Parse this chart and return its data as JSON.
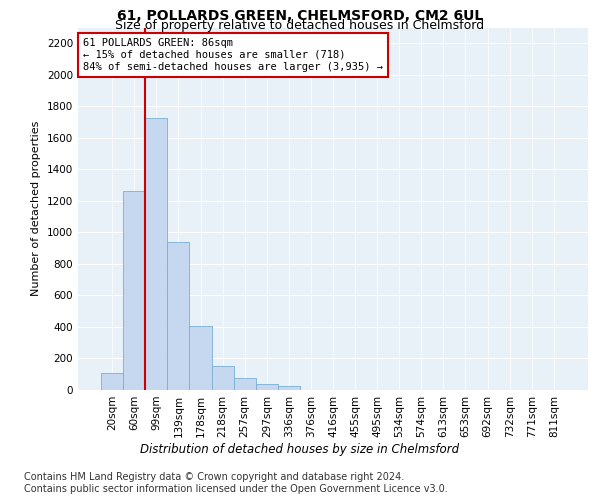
{
  "title": "61, POLLARDS GREEN, CHELMSFORD, CM2 6UL",
  "subtitle": "Size of property relative to detached houses in Chelmsford",
  "xlabel_bottom": "Distribution of detached houses by size in Chelmsford",
  "ylabel": "Number of detached properties",
  "categories": [
    "20sqm",
    "60sqm",
    "99sqm",
    "139sqm",
    "178sqm",
    "218sqm",
    "257sqm",
    "297sqm",
    "336sqm",
    "376sqm",
    "416sqm",
    "455sqm",
    "495sqm",
    "534sqm",
    "574sqm",
    "613sqm",
    "653sqm",
    "692sqm",
    "732sqm",
    "771sqm",
    "811sqm"
  ],
  "values": [
    110,
    1260,
    1725,
    940,
    405,
    150,
    75,
    40,
    25,
    0,
    0,
    0,
    0,
    0,
    0,
    0,
    0,
    0,
    0,
    0,
    0
  ],
  "bar_color": "#c5d8f0",
  "bar_edge_color": "#7aafd4",
  "vline_color": "#cc0000",
  "vline_x_index": 2,
  "annotation_text": "61 POLLARDS GREEN: 86sqm\n← 15% of detached houses are smaller (718)\n84% of semi-detached houses are larger (3,935) →",
  "annotation_box_color": "#ffffff",
  "annotation_box_edge": "#cc0000",
  "ylim": [
    0,
    2300
  ],
  "yticks": [
    0,
    200,
    400,
    600,
    800,
    1000,
    1200,
    1400,
    1600,
    1800,
    2000,
    2200
  ],
  "bg_color": "#ffffff",
  "plot_bg_color": "#e8f0f8",
  "footer": "Contains HM Land Registry data © Crown copyright and database right 2024.\nContains public sector information licensed under the Open Government Licence v3.0.",
  "title_fontsize": 10,
  "subtitle_fontsize": 9,
  "ylabel_fontsize": 8,
  "tick_fontsize": 7.5,
  "annotation_fontsize": 7.5,
  "footer_fontsize": 7
}
